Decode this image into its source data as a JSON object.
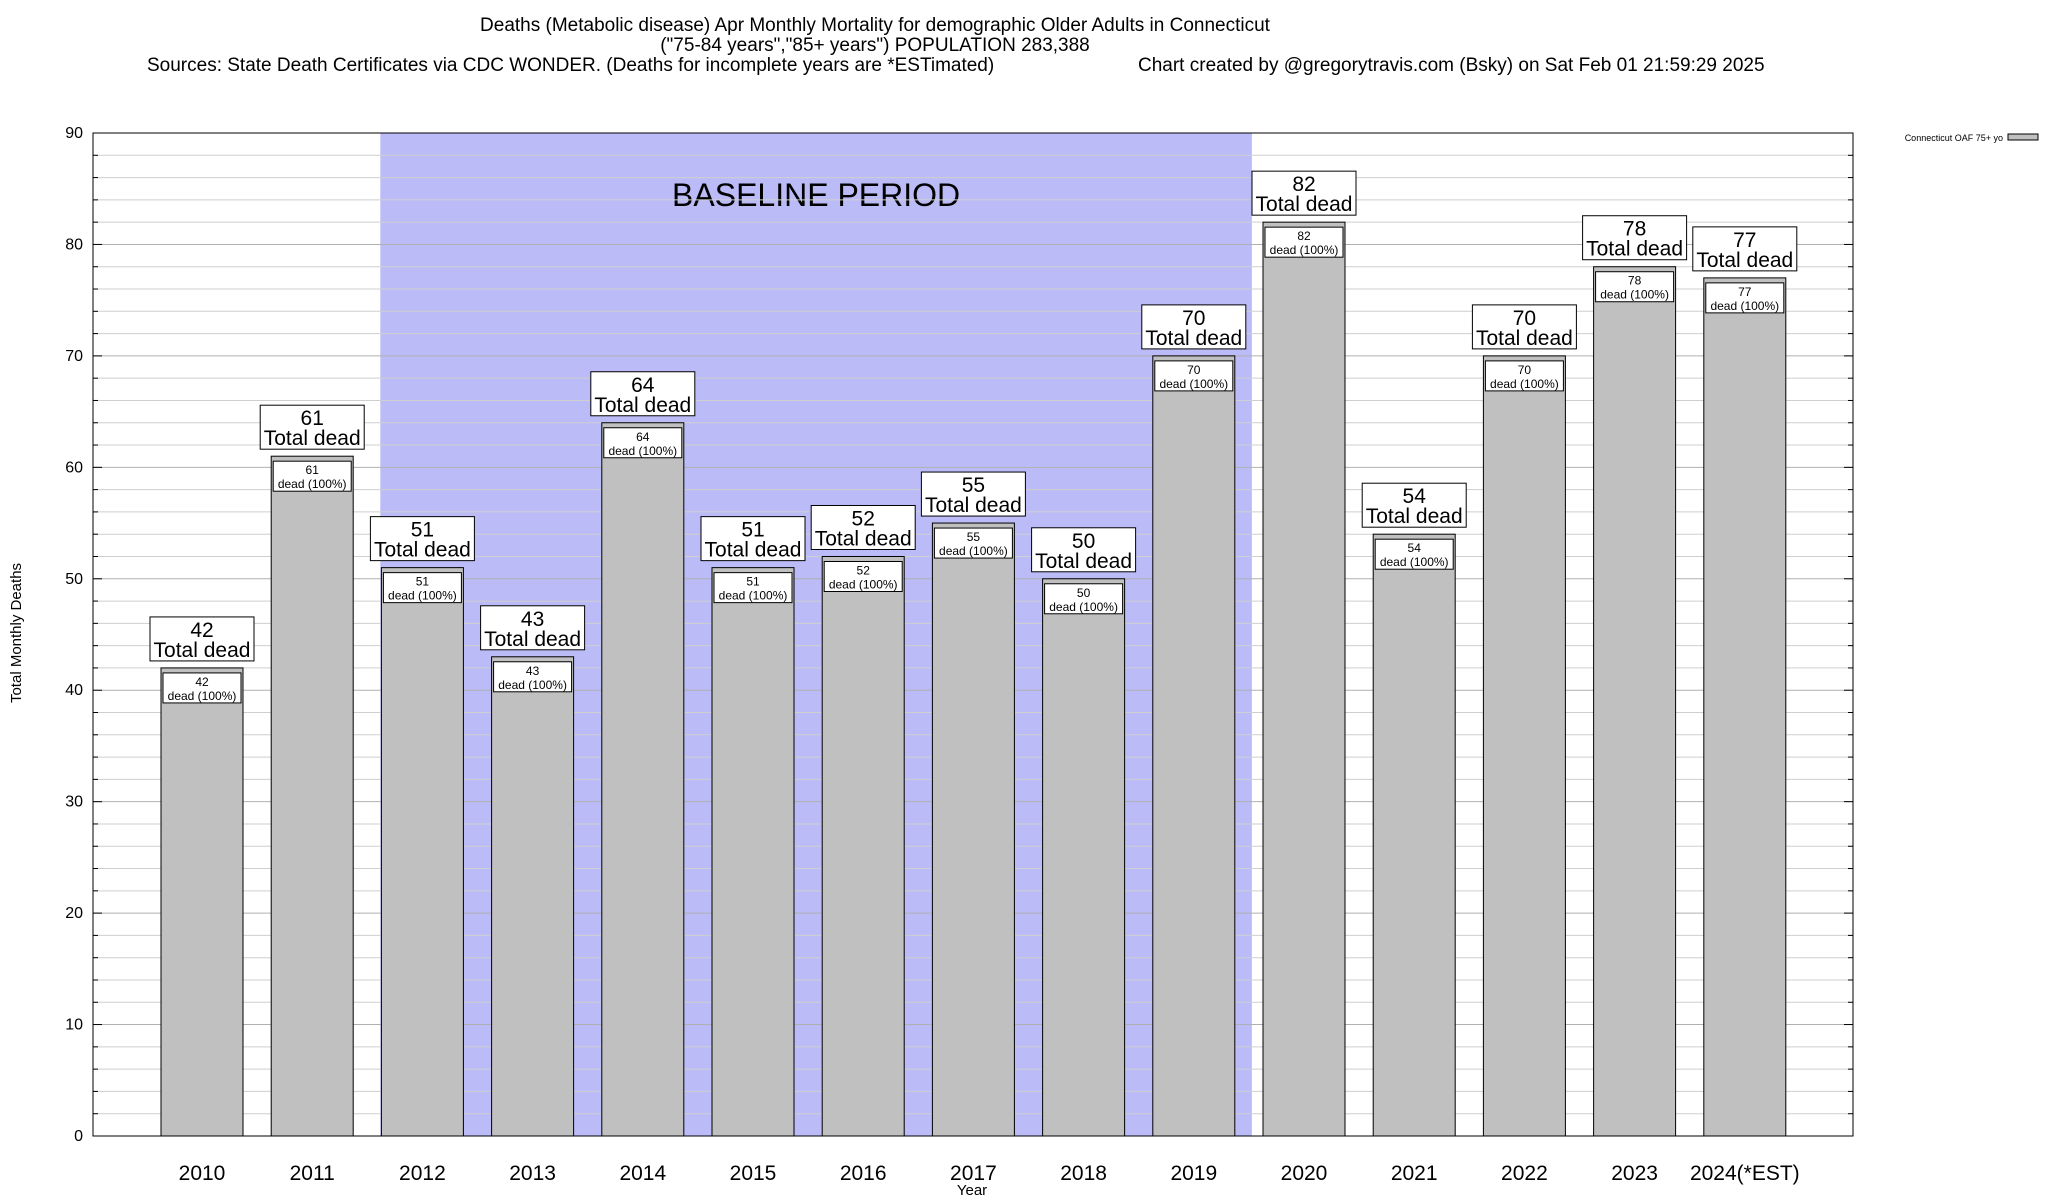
{
  "chart_data": {
    "type": "bar",
    "title_lines": [
      "Deaths (Metabolic disease) Apr Monthly Mortality for demographic Older Adults in Connecticut",
      "(\"75-84 years\",\"85+ years\") POPULATION 283,388"
    ],
    "source_text": "Sources: State Death Certificates via CDC WONDER. (Deaths for incomplete years are *ESTimated)",
    "credit_text": "Chart created by @gregorytravis.com (Bsky) on Sat Feb 01 21:59:29 2025",
    "xlabel": "Year",
    "ylabel": "Total Monthly Deaths",
    "ylim": [
      0,
      90
    ],
    "y_major_ticks": [
      0,
      10,
      20,
      30,
      40,
      50,
      60,
      70,
      80,
      90
    ],
    "y_minor_step": 2,
    "categories": [
      "2010",
      "2011",
      "2012",
      "2013",
      "2014",
      "2015",
      "2016",
      "2017",
      "2018",
      "2019",
      "2020",
      "2021",
      "2022",
      "2023",
      "2024(*EST)"
    ],
    "series": [
      {
        "name": "Connecticut OAF 75+ yo",
        "color": "#c0c0c0",
        "values": [
          42,
          61,
          51,
          43,
          64,
          51,
          52,
          55,
          50,
          70,
          82,
          54,
          70,
          78,
          77
        ]
      }
    ],
    "total_label_suffix": "Total dead",
    "inner_label_suffix": "dead (100%)",
    "baseline": {
      "label": "BASELINE PERIOD",
      "from_category": "2012",
      "to_category": "2019",
      "color": "#bbbbf8"
    },
    "legend": {
      "label": "Connecticut OAF 75+ yo",
      "placement": "top-right"
    }
  }
}
